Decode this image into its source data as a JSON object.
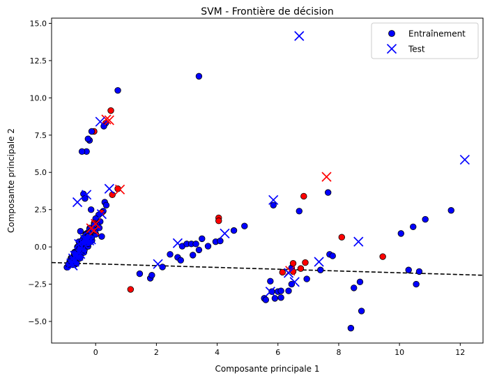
{
  "chart_data": {
    "type": "scatter",
    "title": "SVM - Frontière de décision",
    "xlabel": "Composante principale 1",
    "ylabel": "Composante principale 2",
    "xlim": [
      -1.45,
      12.75
    ],
    "ylim": [
      -6.45,
      15.35
    ],
    "x_ticks": [
      0,
      2,
      4,
      6,
      8,
      10,
      12
    ],
    "y_ticks": [
      -5.0,
      -2.5,
      0.0,
      2.5,
      5.0,
      7.5,
      10.0,
      12.5,
      15.0
    ],
    "x_tick_labels": [
      "0",
      "2",
      "4",
      "6",
      "8",
      "10",
      "12"
    ],
    "y_tick_labels": [
      "−5.0",
      "−2.5",
      "0.0",
      "2.5",
      "5.0",
      "7.5",
      "10.0",
      "12.5",
      "15.0"
    ],
    "grid": false,
    "legend": {
      "position": "top-right",
      "entries": [
        {
          "label": "Entraînement",
          "marker": "circle",
          "color": "#0000ff"
        },
        {
          "label": "Test",
          "marker": "x",
          "color": "#0000ff"
        }
      ]
    },
    "colors": {
      "class_blue": "#0000ff",
      "class_red": "#ff0000",
      "edge": "#000000",
      "boundary": "#000000"
    },
    "decision_boundary": {
      "style": "dashed",
      "points": [
        [
          -1.45,
          -1.05
        ],
        [
          12.75,
          -1.9
        ]
      ]
    },
    "series": [
      {
        "name": "Entraînement",
        "marker": "circle",
        "points": [
          {
            "x": 0.73,
            "y": 10.5,
            "c": "blue"
          },
          {
            "x": 0.5,
            "y": 9.15,
            "c": "red"
          },
          {
            "x": 0.33,
            "y": 8.3,
            "c": "blue"
          },
          {
            "x": 0.27,
            "y": 8.1,
            "c": "blue"
          },
          {
            "x": -0.05,
            "y": 7.75,
            "c": "red"
          },
          {
            "x": -0.13,
            "y": 7.75,
            "c": "blue"
          },
          {
            "x": -0.2,
            "y": 7.15,
            "c": "blue"
          },
          {
            "x": -0.25,
            "y": 7.25,
            "c": "blue"
          },
          {
            "x": -0.3,
            "y": 6.4,
            "c": "blue"
          },
          {
            "x": -0.45,
            "y": 6.4,
            "c": "blue"
          },
          {
            "x": 0.73,
            "y": 3.9,
            "c": "red"
          },
          {
            "x": 0.55,
            "y": 3.5,
            "c": "red"
          },
          {
            "x": 0.3,
            "y": 3.0,
            "c": "blue"
          },
          {
            "x": 0.35,
            "y": 2.8,
            "c": "blue"
          },
          {
            "x": 0.25,
            "y": 2.4,
            "c": "blue"
          },
          {
            "x": 0.2,
            "y": 2.3,
            "c": "red"
          },
          {
            "x": 0.1,
            "y": 2.15,
            "c": "blue"
          },
          {
            "x": -0.15,
            "y": 2.5,
            "c": "blue"
          },
          {
            "x": -0.4,
            "y": 3.55,
            "c": "blue"
          },
          {
            "x": -0.35,
            "y": 3.25,
            "c": "blue"
          },
          {
            "x": 0.0,
            "y": 1.9,
            "c": "blue"
          },
          {
            "x": -0.05,
            "y": 1.6,
            "c": "red"
          },
          {
            "x": -0.1,
            "y": 1.3,
            "c": "red"
          },
          {
            "x": -0.2,
            "y": 1.2,
            "c": "blue"
          },
          {
            "x": 0.15,
            "y": 1.7,
            "c": "blue"
          },
          {
            "x": 0.2,
            "y": 0.7,
            "c": "blue"
          },
          {
            "x": -0.3,
            "y": 0.9,
            "c": "blue"
          },
          {
            "x": -0.5,
            "y": 1.05,
            "c": "blue"
          },
          {
            "x": -0.4,
            "y": 0.6,
            "c": "blue"
          },
          {
            "x": -0.55,
            "y": 0.35,
            "c": "blue"
          },
          {
            "x": -0.6,
            "y": 0.0,
            "c": "blue"
          },
          {
            "x": -0.7,
            "y": -0.4,
            "c": "blue"
          },
          {
            "x": -0.8,
            "y": -0.8,
            "c": "blue"
          },
          {
            "x": 1.15,
            "y": -2.85,
            "c": "red"
          },
          {
            "x": 1.45,
            "y": -1.8,
            "c": "blue"
          },
          {
            "x": 1.8,
            "y": -2.1,
            "c": "blue"
          },
          {
            "x": 1.85,
            "y": -1.9,
            "c": "blue"
          },
          {
            "x": 2.2,
            "y": -1.35,
            "c": "blue"
          },
          {
            "x": 2.45,
            "y": -0.5,
            "c": "blue"
          },
          {
            "x": 2.7,
            "y": -0.7,
            "c": "blue"
          },
          {
            "x": 2.8,
            "y": -0.9,
            "c": "blue"
          },
          {
            "x": 2.85,
            "y": 0.05,
            "c": "blue"
          },
          {
            "x": 3.0,
            "y": 0.2,
            "c": "blue"
          },
          {
            "x": 3.15,
            "y": 0.2,
            "c": "blue"
          },
          {
            "x": 3.3,
            "y": 0.2,
            "c": "blue"
          },
          {
            "x": 3.2,
            "y": -0.55,
            "c": "blue"
          },
          {
            "x": 3.4,
            "y": -0.2,
            "c": "blue"
          },
          {
            "x": 3.5,
            "y": 0.55,
            "c": "blue"
          },
          {
            "x": 3.7,
            "y": 0.05,
            "c": "blue"
          },
          {
            "x": 3.95,
            "y": 0.35,
            "c": "blue"
          },
          {
            "x": 4.1,
            "y": 0.4,
            "c": "blue"
          },
          {
            "x": 4.05,
            "y": 1.95,
            "c": "red"
          },
          {
            "x": 4.05,
            "y": 1.75,
            "c": "red"
          },
          {
            "x": 4.55,
            "y": 1.1,
            "c": "blue"
          },
          {
            "x": 4.9,
            "y": 1.4,
            "c": "blue"
          },
          {
            "x": 3.4,
            "y": 11.45,
            "c": "blue"
          },
          {
            "x": 5.55,
            "y": -3.45,
            "c": "blue"
          },
          {
            "x": 5.6,
            "y": -3.55,
            "c": "blue"
          },
          {
            "x": 5.75,
            "y": -2.3,
            "c": "blue"
          },
          {
            "x": 5.8,
            "y": -3.0,
            "c": "blue"
          },
          {
            "x": 5.9,
            "y": -3.45,
            "c": "blue"
          },
          {
            "x": 6.0,
            "y": -3.0,
            "c": "blue"
          },
          {
            "x": 6.1,
            "y": -2.95,
            "c": "blue"
          },
          {
            "x": 6.1,
            "y": -3.4,
            "c": "blue"
          },
          {
            "x": 6.15,
            "y": -1.7,
            "c": "red"
          },
          {
            "x": 6.35,
            "y": -2.95,
            "c": "blue"
          },
          {
            "x": 6.45,
            "y": -1.4,
            "c": "blue"
          },
          {
            "x": 6.45,
            "y": -2.5,
            "c": "blue"
          },
          {
            "x": 6.5,
            "y": -1.1,
            "c": "red"
          },
          {
            "x": 6.5,
            "y": -1.65,
            "c": "red"
          },
          {
            "x": 6.75,
            "y": -1.45,
            "c": "red"
          },
          {
            "x": 6.9,
            "y": -1.05,
            "c": "red"
          },
          {
            "x": 6.95,
            "y": -2.15,
            "c": "blue"
          },
          {
            "x": 5.85,
            "y": 2.8,
            "c": "blue"
          },
          {
            "x": 6.7,
            "y": 2.4,
            "c": "blue"
          },
          {
            "x": 6.85,
            "y": 3.4,
            "c": "red"
          },
          {
            "x": 7.65,
            "y": 3.65,
            "c": "blue"
          },
          {
            "x": 7.4,
            "y": -1.55,
            "c": "blue"
          },
          {
            "x": 7.7,
            "y": -0.5,
            "c": "blue"
          },
          {
            "x": 7.8,
            "y": -0.6,
            "c": "blue"
          },
          {
            "x": 8.1,
            "y": 0.65,
            "c": "red"
          },
          {
            "x": 8.5,
            "y": -2.75,
            "c": "blue"
          },
          {
            "x": 8.7,
            "y": -2.35,
            "c": "blue"
          },
          {
            "x": 8.75,
            "y": -4.3,
            "c": "blue"
          },
          {
            "x": 8.4,
            "y": -5.45,
            "c": "blue"
          },
          {
            "x": 9.45,
            "y": -0.65,
            "c": "red"
          },
          {
            "x": 10.05,
            "y": 0.9,
            "c": "blue"
          },
          {
            "x": 10.3,
            "y": -1.55,
            "c": "blue"
          },
          {
            "x": 10.45,
            "y": 1.35,
            "c": "blue"
          },
          {
            "x": 10.55,
            "y": -2.5,
            "c": "blue"
          },
          {
            "x": 10.65,
            "y": -1.65,
            "c": "blue"
          },
          {
            "x": 10.85,
            "y": 1.85,
            "c": "blue"
          },
          {
            "x": 11.7,
            "y": 2.45,
            "c": "blue"
          }
        ]
      },
      {
        "name": "Test",
        "marker": "x",
        "points": [
          {
            "x": 6.7,
            "y": 14.15,
            "c": "blue"
          },
          {
            "x": 12.15,
            "y": 5.85,
            "c": "blue"
          },
          {
            "x": 7.6,
            "y": 4.7,
            "c": "red"
          },
          {
            "x": 0.35,
            "y": 8.55,
            "c": "red"
          },
          {
            "x": 0.45,
            "y": 8.5,
            "c": "red"
          },
          {
            "x": 0.15,
            "y": 8.4,
            "c": "blue"
          },
          {
            "x": 0.8,
            "y": 3.85,
            "c": "red"
          },
          {
            "x": 0.45,
            "y": 3.9,
            "c": "blue"
          },
          {
            "x": -0.3,
            "y": 3.5,
            "c": "blue"
          },
          {
            "x": -0.6,
            "y": 3.0,
            "c": "blue"
          },
          {
            "x": 0.2,
            "y": 2.2,
            "c": "blue"
          },
          {
            "x": 0.0,
            "y": 1.55,
            "c": "red"
          },
          {
            "x": -0.15,
            "y": 1.25,
            "c": "red"
          },
          {
            "x": -0.05,
            "y": 1.1,
            "c": "red"
          },
          {
            "x": -0.35,
            "y": 0.5,
            "c": "blue"
          },
          {
            "x": -0.55,
            "y": 0.2,
            "c": "blue"
          },
          {
            "x": -0.75,
            "y": -1.25,
            "c": "blue"
          },
          {
            "x": -0.7,
            "y": -1.0,
            "c": "blue"
          },
          {
            "x": 2.05,
            "y": -1.15,
            "c": "blue"
          },
          {
            "x": 2.7,
            "y": 0.25,
            "c": "blue"
          },
          {
            "x": 4.25,
            "y": 0.9,
            "c": "blue"
          },
          {
            "x": 5.85,
            "y": 3.15,
            "c": "blue"
          },
          {
            "x": 5.75,
            "y": -3.0,
            "c": "blue"
          },
          {
            "x": 6.4,
            "y": -1.6,
            "c": "red"
          },
          {
            "x": 6.35,
            "y": -1.75,
            "c": "blue"
          },
          {
            "x": 6.55,
            "y": -2.35,
            "c": "blue"
          },
          {
            "x": 7.35,
            "y": -1.0,
            "c": "blue"
          },
          {
            "x": 8.65,
            "y": 0.35,
            "c": "blue"
          }
        ]
      }
    ]
  }
}
